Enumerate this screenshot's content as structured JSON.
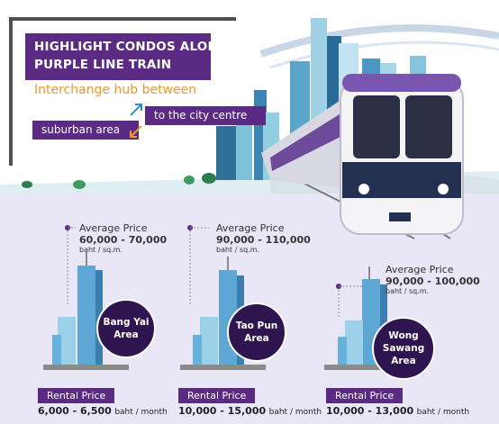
{
  "header": {
    "title_line1": "HIGHLIGHT CONDOS ALONG",
    "title_line2": "PURPLE LINE TRAIN",
    "subtitle": "Interchange hub between",
    "from_label": "suburban area",
    "to_label": "to the city centre"
  },
  "colors": {
    "purple": "#5b2a82",
    "orange": "#f29724",
    "dark_purple": "#2f1550",
    "lavender_bg": "#e9e6f6"
  },
  "areas": [
    {
      "name_line1": "Bang Yai",
      "name_line2": "Area",
      "avg_label": "Average Price",
      "avg_value": "60,000 - 70,000",
      "avg_unit": "baht / sq.m.",
      "rental_label": "Rental Price",
      "rental_value": "6,000 - 6,500",
      "rental_unit": "baht / month"
    },
    {
      "name_line1": "Tao Pun",
      "name_line2": "Area",
      "avg_label": "Average Price",
      "avg_value": "90,000 - 110,000",
      "avg_unit": "baht / sq.m.",
      "rental_label": "Rental Price",
      "rental_value": "10,000 - 15,000",
      "rental_unit": "baht / month"
    },
    {
      "name_line1": "Wong Sawang",
      "name_line2": "Area",
      "avg_label": "Average Price",
      "avg_value": "90,000 - 100,000",
      "avg_unit": "baht / sq.m.",
      "rental_label": "Rental Price",
      "rental_value": "10,000 - 13,000",
      "rental_unit": "baht / month"
    }
  ]
}
